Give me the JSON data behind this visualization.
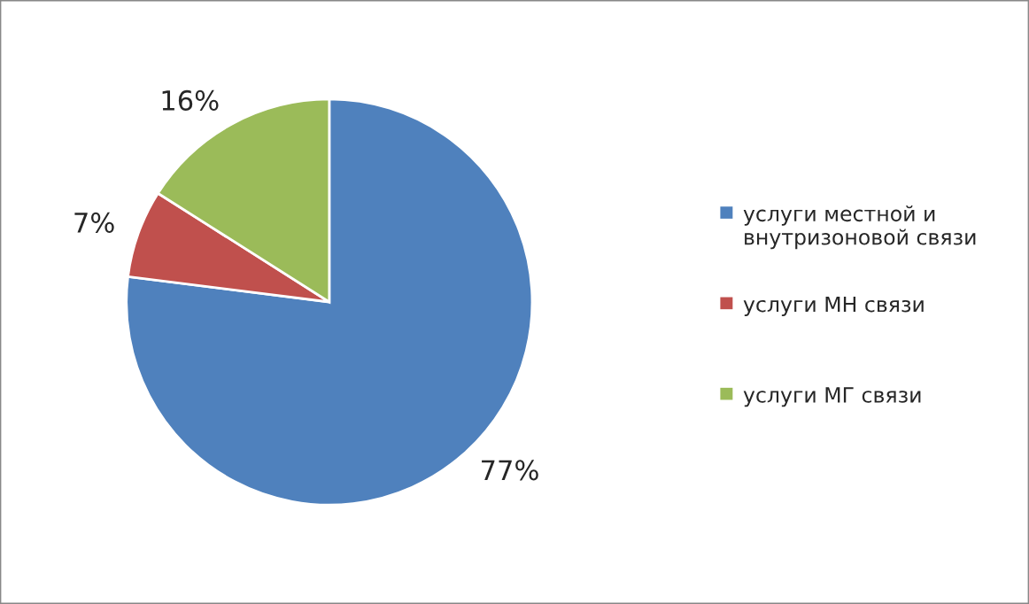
{
  "chart_data": {
    "type": "pie",
    "categories": [
      "услуги местной и внутризоновой связи",
      "услуги МН связи",
      "услуги МГ связи"
    ],
    "values": [
      77,
      7,
      16
    ],
    "colors": [
      "#4f81bd",
      "#c0504d",
      "#9bbb59"
    ],
    "value_labels": [
      "77%",
      "7%",
      "16%"
    ],
    "legend": "right"
  }
}
